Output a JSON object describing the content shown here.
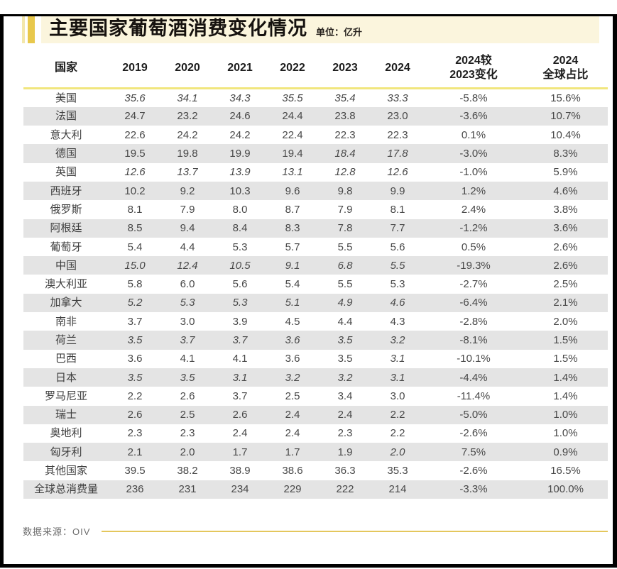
{
  "header": {
    "title": "主要国家葡萄酒消费变化情况",
    "unit": "单位：亿升"
  },
  "chart_data": {
    "type": "table",
    "title": "主要国家葡萄酒消费变化情况",
    "unit": "亿升",
    "columns": [
      "国家",
      "2019",
      "2020",
      "2021",
      "2022",
      "2023",
      "2024",
      "2024较\n2023变化",
      "2024\n全球占比"
    ],
    "rows": [
      {
        "country": "美国",
        "values": [
          "35.6",
          "34.1",
          "34.3",
          "35.5",
          "35.4",
          "33.3"
        ],
        "italics": [
          1,
          1,
          1,
          1,
          1,
          1
        ],
        "change": "-5.8%",
        "share": "15.6%"
      },
      {
        "country": "法国",
        "values": [
          "24.7",
          "23.2",
          "24.6",
          "24.4",
          "23.8",
          "23.0"
        ],
        "italics": [
          0,
          0,
          0,
          0,
          0,
          0
        ],
        "change": "-3.6%",
        "share": "10.7%"
      },
      {
        "country": "意大利",
        "values": [
          "22.6",
          "24.2",
          "24.2",
          "22.4",
          "22.3",
          "22.3"
        ],
        "italics": [
          0,
          0,
          0,
          0,
          0,
          0
        ],
        "change": "0.1%",
        "share": "10.4%"
      },
      {
        "country": "德国",
        "values": [
          "19.5",
          "19.8",
          "19.9",
          "19.4",
          "18.4",
          "17.8"
        ],
        "italics": [
          0,
          0,
          0,
          0,
          1,
          1
        ],
        "change": "-3.0%",
        "share": "8.3%"
      },
      {
        "country": "英国",
        "values": [
          "12.6",
          "13.7",
          "13.9",
          "13.1",
          "12.8",
          "12.6"
        ],
        "italics": [
          1,
          1,
          1,
          1,
          1,
          1
        ],
        "change": "-1.0%",
        "share": "5.9%"
      },
      {
        "country": "西班牙",
        "values": [
          "10.2",
          "9.2",
          "10.3",
          "9.6",
          "9.8",
          "9.9"
        ],
        "italics": [
          0,
          0,
          0,
          0,
          0,
          0
        ],
        "change": "1.2%",
        "share": "4.6%"
      },
      {
        "country": "俄罗斯",
        "values": [
          "8.1",
          "7.9",
          "8.0",
          "8.7",
          "7.9",
          "8.1"
        ],
        "italics": [
          0,
          0,
          0,
          0,
          0,
          0
        ],
        "change": "2.4%",
        "share": "3.8%"
      },
      {
        "country": "阿根廷",
        "values": [
          "8.5",
          "9.4",
          "8.4",
          "8.3",
          "7.8",
          "7.7"
        ],
        "italics": [
          0,
          0,
          0,
          0,
          0,
          0
        ],
        "change": "-1.2%",
        "share": "3.6%"
      },
      {
        "country": "葡萄牙",
        "values": [
          "5.4",
          "4.4",
          "5.3",
          "5.7",
          "5.5",
          "5.6"
        ],
        "italics": [
          0,
          0,
          0,
          0,
          0,
          0
        ],
        "change": "0.5%",
        "share": "2.6%"
      },
      {
        "country": "中国",
        "values": [
          "15.0",
          "12.4",
          "10.5",
          "9.1",
          "6.8",
          "5.5"
        ],
        "italics": [
          1,
          1,
          1,
          1,
          1,
          1
        ],
        "change": "-19.3%",
        "share": "2.6%"
      },
      {
        "country": "澳大利亚",
        "values": [
          "5.8",
          "6.0",
          "5.6",
          "5.4",
          "5.5",
          "5.3"
        ],
        "italics": [
          0,
          0,
          0,
          0,
          0,
          0
        ],
        "change": "-2.7%",
        "share": "2.5%"
      },
      {
        "country": "加拿大",
        "values": [
          "5.2",
          "5.3",
          "5.3",
          "5.1",
          "4.9",
          "4.6"
        ],
        "italics": [
          1,
          1,
          1,
          1,
          1,
          1
        ],
        "change": "-6.4%",
        "share": "2.1%"
      },
      {
        "country": "南非",
        "values": [
          "3.7",
          "3.0",
          "3.9",
          "4.5",
          "4.4",
          "4.3"
        ],
        "italics": [
          0,
          0,
          0,
          0,
          0,
          0
        ],
        "change": "-2.8%",
        "share": "2.0%"
      },
      {
        "country": "荷兰",
        "values": [
          "3.5",
          "3.7",
          "3.7",
          "3.6",
          "3.5",
          "3.2"
        ],
        "italics": [
          1,
          1,
          1,
          1,
          1,
          1
        ],
        "change": "-8.1%",
        "share": "1.5%"
      },
      {
        "country": "巴西",
        "values": [
          "3.6",
          "4.1",
          "4.1",
          "3.6",
          "3.5",
          "3.1"
        ],
        "italics": [
          0,
          0,
          0,
          0,
          0,
          1
        ],
        "change": "-10.1%",
        "share": "1.5%"
      },
      {
        "country": "日本",
        "values": [
          "3.5",
          "3.5",
          "3.1",
          "3.2",
          "3.2",
          "3.1"
        ],
        "italics": [
          1,
          1,
          1,
          1,
          1,
          1
        ],
        "change": "-4.4%",
        "share": "1.4%"
      },
      {
        "country": "罗马尼亚",
        "values": [
          "2.2",
          "2.6",
          "3.7",
          "2.5",
          "3.4",
          "3.0"
        ],
        "italics": [
          0,
          0,
          0,
          0,
          0,
          0
        ],
        "change": "-11.4%",
        "share": "1.4%"
      },
      {
        "country": "瑞士",
        "values": [
          "2.6",
          "2.5",
          "2.6",
          "2.4",
          "2.4",
          "2.2"
        ],
        "italics": [
          0,
          0,
          0,
          0,
          0,
          0
        ],
        "change": "-5.0%",
        "share": "1.0%"
      },
      {
        "country": "奥地利",
        "values": [
          "2.3",
          "2.3",
          "2.4",
          "2.4",
          "2.3",
          "2.2"
        ],
        "italics": [
          0,
          0,
          0,
          0,
          0,
          0
        ],
        "change": "-2.6%",
        "share": "1.0%"
      },
      {
        "country": "匈牙利",
        "values": [
          "2.1",
          "2.0",
          "1.7",
          "1.7",
          "1.9",
          "2.0"
        ],
        "italics": [
          0,
          0,
          0,
          0,
          0,
          1
        ],
        "change": "7.5%",
        "share": "0.9%"
      },
      {
        "country": "其他国家",
        "values": [
          "39.5",
          "38.2",
          "38.9",
          "38.6",
          "36.3",
          "35.3"
        ],
        "italics": [
          0,
          0,
          0,
          0,
          0,
          0
        ],
        "change": "-2.6%",
        "share": "16.5%"
      },
      {
        "country": "全球总消费量",
        "values": [
          "236",
          "231",
          "234",
          "229",
          "222",
          "214"
        ],
        "italics": [
          0,
          0,
          0,
          0,
          0,
          0
        ],
        "change": "-3.3%",
        "share": "100.0%"
      }
    ]
  },
  "footer": {
    "source": "数据来源：OIV"
  },
  "colors": {
    "accent_gold": "#e8c84c",
    "accent_gold_light": "#f3e7ab",
    "title_band_cream": "#fbf5dd",
    "header_rule_yellow": "#f1e67d",
    "row_stripe_gray": "#e4e4e4",
    "footer_line_gold": "#e4c75d"
  }
}
